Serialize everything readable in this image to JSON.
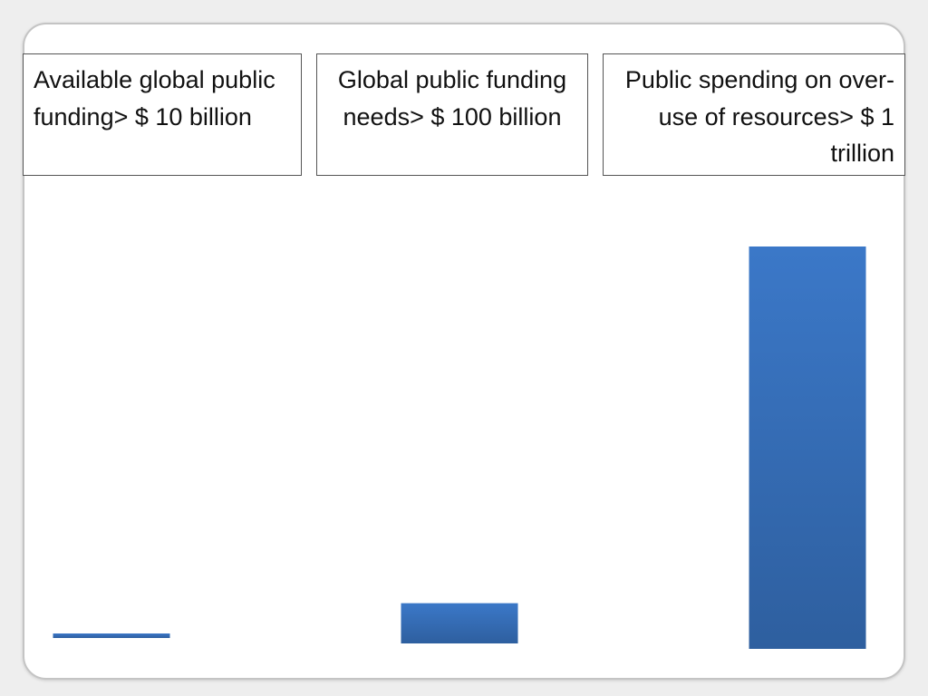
{
  "chart_data": {
    "type": "bar",
    "categories": [
      "Available global public funding> $ 10 billion",
      "Global public funding needs> $ 100 billion",
      "Public spending on over-use of resources> $ 1 trillion"
    ],
    "values": [
      10,
      100,
      1000
    ],
    "unit": "billion USD",
    "ylim": [
      0,
      1000
    ],
    "grid": false,
    "legend": "none",
    "bar_color": "#3b78c8",
    "bar_color_dark": "#2e5f9f"
  }
}
